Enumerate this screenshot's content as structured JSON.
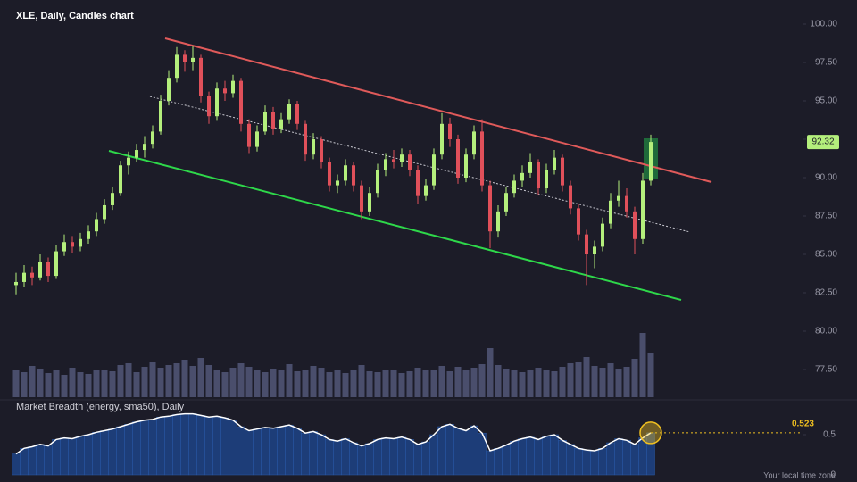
{
  "chart_data": [
    {
      "type": "candlestick",
      "title": "XLE, Daily, Candles chart",
      "up_color": "#b4ef7c",
      "down_color": "#e0505a",
      "volume_color": "#4a4e6c",
      "ylim": [
        77.5,
        100
      ],
      "yticks": [
        {
          "value": 100,
          "label": "100.00"
        },
        {
          "value": 97.5,
          "label": "97.50"
        },
        {
          "value": 95,
          "label": "95.00"
        },
        {
          "value": 92.5,
          "label": "92.50"
        },
        {
          "value": 90,
          "label": "90.00"
        },
        {
          "value": 87.5,
          "label": "87.50"
        },
        {
          "value": 85,
          "label": "85.00"
        },
        {
          "value": 82.5,
          "label": "82.50"
        },
        {
          "value": 80,
          "label": "80.00"
        },
        {
          "value": 77.5,
          "label": "77.50"
        }
      ],
      "candles": [
        [
          83.0,
          83.8,
          82.4,
          83.2
        ],
        [
          83.2,
          84.3,
          82.9,
          83.8
        ],
        [
          83.8,
          84.2,
          83.0,
          83.5
        ],
        [
          83.5,
          85.0,
          83.3,
          84.5
        ],
        [
          84.5,
          84.8,
          83.2,
          83.6
        ],
        [
          83.6,
          85.6,
          83.4,
          85.2
        ],
        [
          85.2,
          86.3,
          84.9,
          85.8
        ],
        [
          85.8,
          86.2,
          85.1,
          85.5
        ],
        [
          85.5,
          86.4,
          85.2,
          86.0
        ],
        [
          86.0,
          86.9,
          85.7,
          86.5
        ],
        [
          86.5,
          87.7,
          86.2,
          87.3
        ],
        [
          87.3,
          88.6,
          87.0,
          88.2
        ],
        [
          88.2,
          89.4,
          87.9,
          89.0
        ],
        [
          89.0,
          91.1,
          88.8,
          90.8
        ],
        [
          90.8,
          91.7,
          90.2,
          91.3
        ],
        [
          91.3,
          92.2,
          91.0,
          91.8
        ],
        [
          91.8,
          92.7,
          91.3,
          92.2
        ],
        [
          92.2,
          93.4,
          91.9,
          93.0
        ],
        [
          93.0,
          95.4,
          92.8,
          95.0
        ],
        [
          95.0,
          97.0,
          94.7,
          96.5
        ],
        [
          96.5,
          98.5,
          96.2,
          98.0
        ],
        [
          98.0,
          98.3,
          96.9,
          97.5
        ],
        [
          97.5,
          98.6,
          97.0,
          97.8
        ],
        [
          97.8,
          98.0,
          94.9,
          95.3
        ],
        [
          95.3,
          95.6,
          93.5,
          94.0
        ],
        [
          94.0,
          96.2,
          93.7,
          95.8
        ],
        [
          95.8,
          96.3,
          95.0,
          95.5
        ],
        [
          95.5,
          96.7,
          95.2,
          96.3
        ],
        [
          96.3,
          96.5,
          93.0,
          93.5
        ],
        [
          93.5,
          93.8,
          91.6,
          92.0
        ],
        [
          92.0,
          93.4,
          91.7,
          93.0
        ],
        [
          93.0,
          94.7,
          92.8,
          94.3
        ],
        [
          94.3,
          94.6,
          92.8,
          93.2
        ],
        [
          93.2,
          94.2,
          92.9,
          93.8
        ],
        [
          93.8,
          95.1,
          93.5,
          94.8
        ],
        [
          94.8,
          95.0,
          93.1,
          93.5
        ],
        [
          93.5,
          93.7,
          91.1,
          91.5
        ],
        [
          91.5,
          92.9,
          91.2,
          92.5
        ],
        [
          92.5,
          92.7,
          90.6,
          91.0
        ],
        [
          91.0,
          91.3,
          89.1,
          89.5
        ],
        [
          89.5,
          90.2,
          89.0,
          89.8
        ],
        [
          89.8,
          91.2,
          89.5,
          90.8
        ],
        [
          90.8,
          91.0,
          89.1,
          89.5
        ],
        [
          89.5,
          89.8,
          87.3,
          87.8
        ],
        [
          87.8,
          89.4,
          87.5,
          89.0
        ],
        [
          89.0,
          90.9,
          88.7,
          90.5
        ],
        [
          90.5,
          91.6,
          90.1,
          91.2
        ],
        [
          91.2,
          91.8,
          90.6,
          91.0
        ],
        [
          91.0,
          91.9,
          90.7,
          91.5
        ],
        [
          91.5,
          91.8,
          90.1,
          90.5
        ],
        [
          90.5,
          90.8,
          88.3,
          88.8
        ],
        [
          88.8,
          89.9,
          88.5,
          89.5
        ],
        [
          89.5,
          91.9,
          89.2,
          91.5
        ],
        [
          91.5,
          94.2,
          91.2,
          93.5
        ],
        [
          93.5,
          93.9,
          92.0,
          92.5
        ],
        [
          92.5,
          92.8,
          89.6,
          90.0
        ],
        [
          90.0,
          91.9,
          89.7,
          91.5
        ],
        [
          91.5,
          93.4,
          91.2,
          93.0
        ],
        [
          93.0,
          93.8,
          89.1,
          89.5
        ],
        [
          89.5,
          89.8,
          85.4,
          86.5
        ],
        [
          86.5,
          88.2,
          86.1,
          87.8
        ],
        [
          87.8,
          89.4,
          87.5,
          89.0
        ],
        [
          89.0,
          90.2,
          88.7,
          89.8
        ],
        [
          89.8,
          90.8,
          89.4,
          90.3
        ],
        [
          90.3,
          91.6,
          90.0,
          91.0
        ],
        [
          91.0,
          91.2,
          88.9,
          89.3
        ],
        [
          89.3,
          90.9,
          89.0,
          90.5
        ],
        [
          90.5,
          91.8,
          90.2,
          91.3
        ],
        [
          91.3,
          91.5,
          89.1,
          89.5
        ],
        [
          89.5,
          89.8,
          87.6,
          88.0
        ],
        [
          88.0,
          88.3,
          85.9,
          86.3
        ],
        [
          86.3,
          86.6,
          83.0,
          85.0
        ],
        [
          85.0,
          85.9,
          84.1,
          85.5
        ],
        [
          85.5,
          87.4,
          85.2,
          87.0
        ],
        [
          87.0,
          89.0,
          86.7,
          88.5
        ],
        [
          88.5,
          89.8,
          88.1,
          88.8
        ],
        [
          88.8,
          89.3,
          87.4,
          87.8
        ],
        [
          87.8,
          88.1,
          85.0,
          86.0
        ],
        [
          86.0,
          90.3,
          85.7,
          89.8
        ],
        [
          89.8,
          92.8,
          89.5,
          92.32
        ]
      ],
      "volume": [
        30,
        28,
        35,
        32,
        27,
        30,
        25,
        33,
        28,
        26,
        30,
        31,
        29,
        36,
        38,
        28,
        34,
        40,
        33,
        36,
        38,
        42,
        35,
        44,
        36,
        30,
        28,
        33,
        38,
        34,
        30,
        28,
        32,
        30,
        37,
        29,
        31,
        35,
        33,
        28,
        30,
        27,
        31,
        36,
        29,
        28,
        30,
        31,
        27,
        29,
        33,
        31,
        30,
        35,
        29,
        34,
        30,
        33,
        37,
        55,
        36,
        32,
        30,
        28,
        30,
        33,
        31,
        29,
        34,
        38,
        40,
        45,
        35,
        33,
        38,
        32,
        34,
        43,
        72,
        50
      ],
      "volume_ylim": [
        0,
        80
      ]
    },
    {
      "type": "area",
      "title": "Market Breadth (energy, sma50), Daily",
      "color": "#1d3d78",
      "line_color": "#ffffff",
      "ylim": [
        0,
        0.8
      ],
      "yticks": [
        0.5,
        0
      ],
      "values": [
        0.26,
        0.33,
        0.35,
        0.38,
        0.36,
        0.44,
        0.46,
        0.45,
        0.48,
        0.5,
        0.53,
        0.55,
        0.57,
        0.6,
        0.63,
        0.66,
        0.68,
        0.69,
        0.72,
        0.73,
        0.75,
        0.76,
        0.76,
        0.74,
        0.72,
        0.73,
        0.71,
        0.68,
        0.6,
        0.55,
        0.57,
        0.59,
        0.58,
        0.6,
        0.62,
        0.58,
        0.52,
        0.54,
        0.5,
        0.44,
        0.42,
        0.45,
        0.4,
        0.36,
        0.39,
        0.44,
        0.46,
        0.45,
        0.47,
        0.44,
        0.38,
        0.41,
        0.5,
        0.6,
        0.63,
        0.58,
        0.55,
        0.61,
        0.52,
        0.3,
        0.33,
        0.37,
        0.42,
        0.45,
        0.47,
        0.44,
        0.48,
        0.5,
        0.43,
        0.38,
        0.33,
        0.31,
        0.3,
        0.33,
        0.4,
        0.45,
        0.43,
        0.38,
        0.46,
        0.523
      ],
      "last_color": "#f0c020"
    }
  ],
  "footer": "Your local time zone"
}
